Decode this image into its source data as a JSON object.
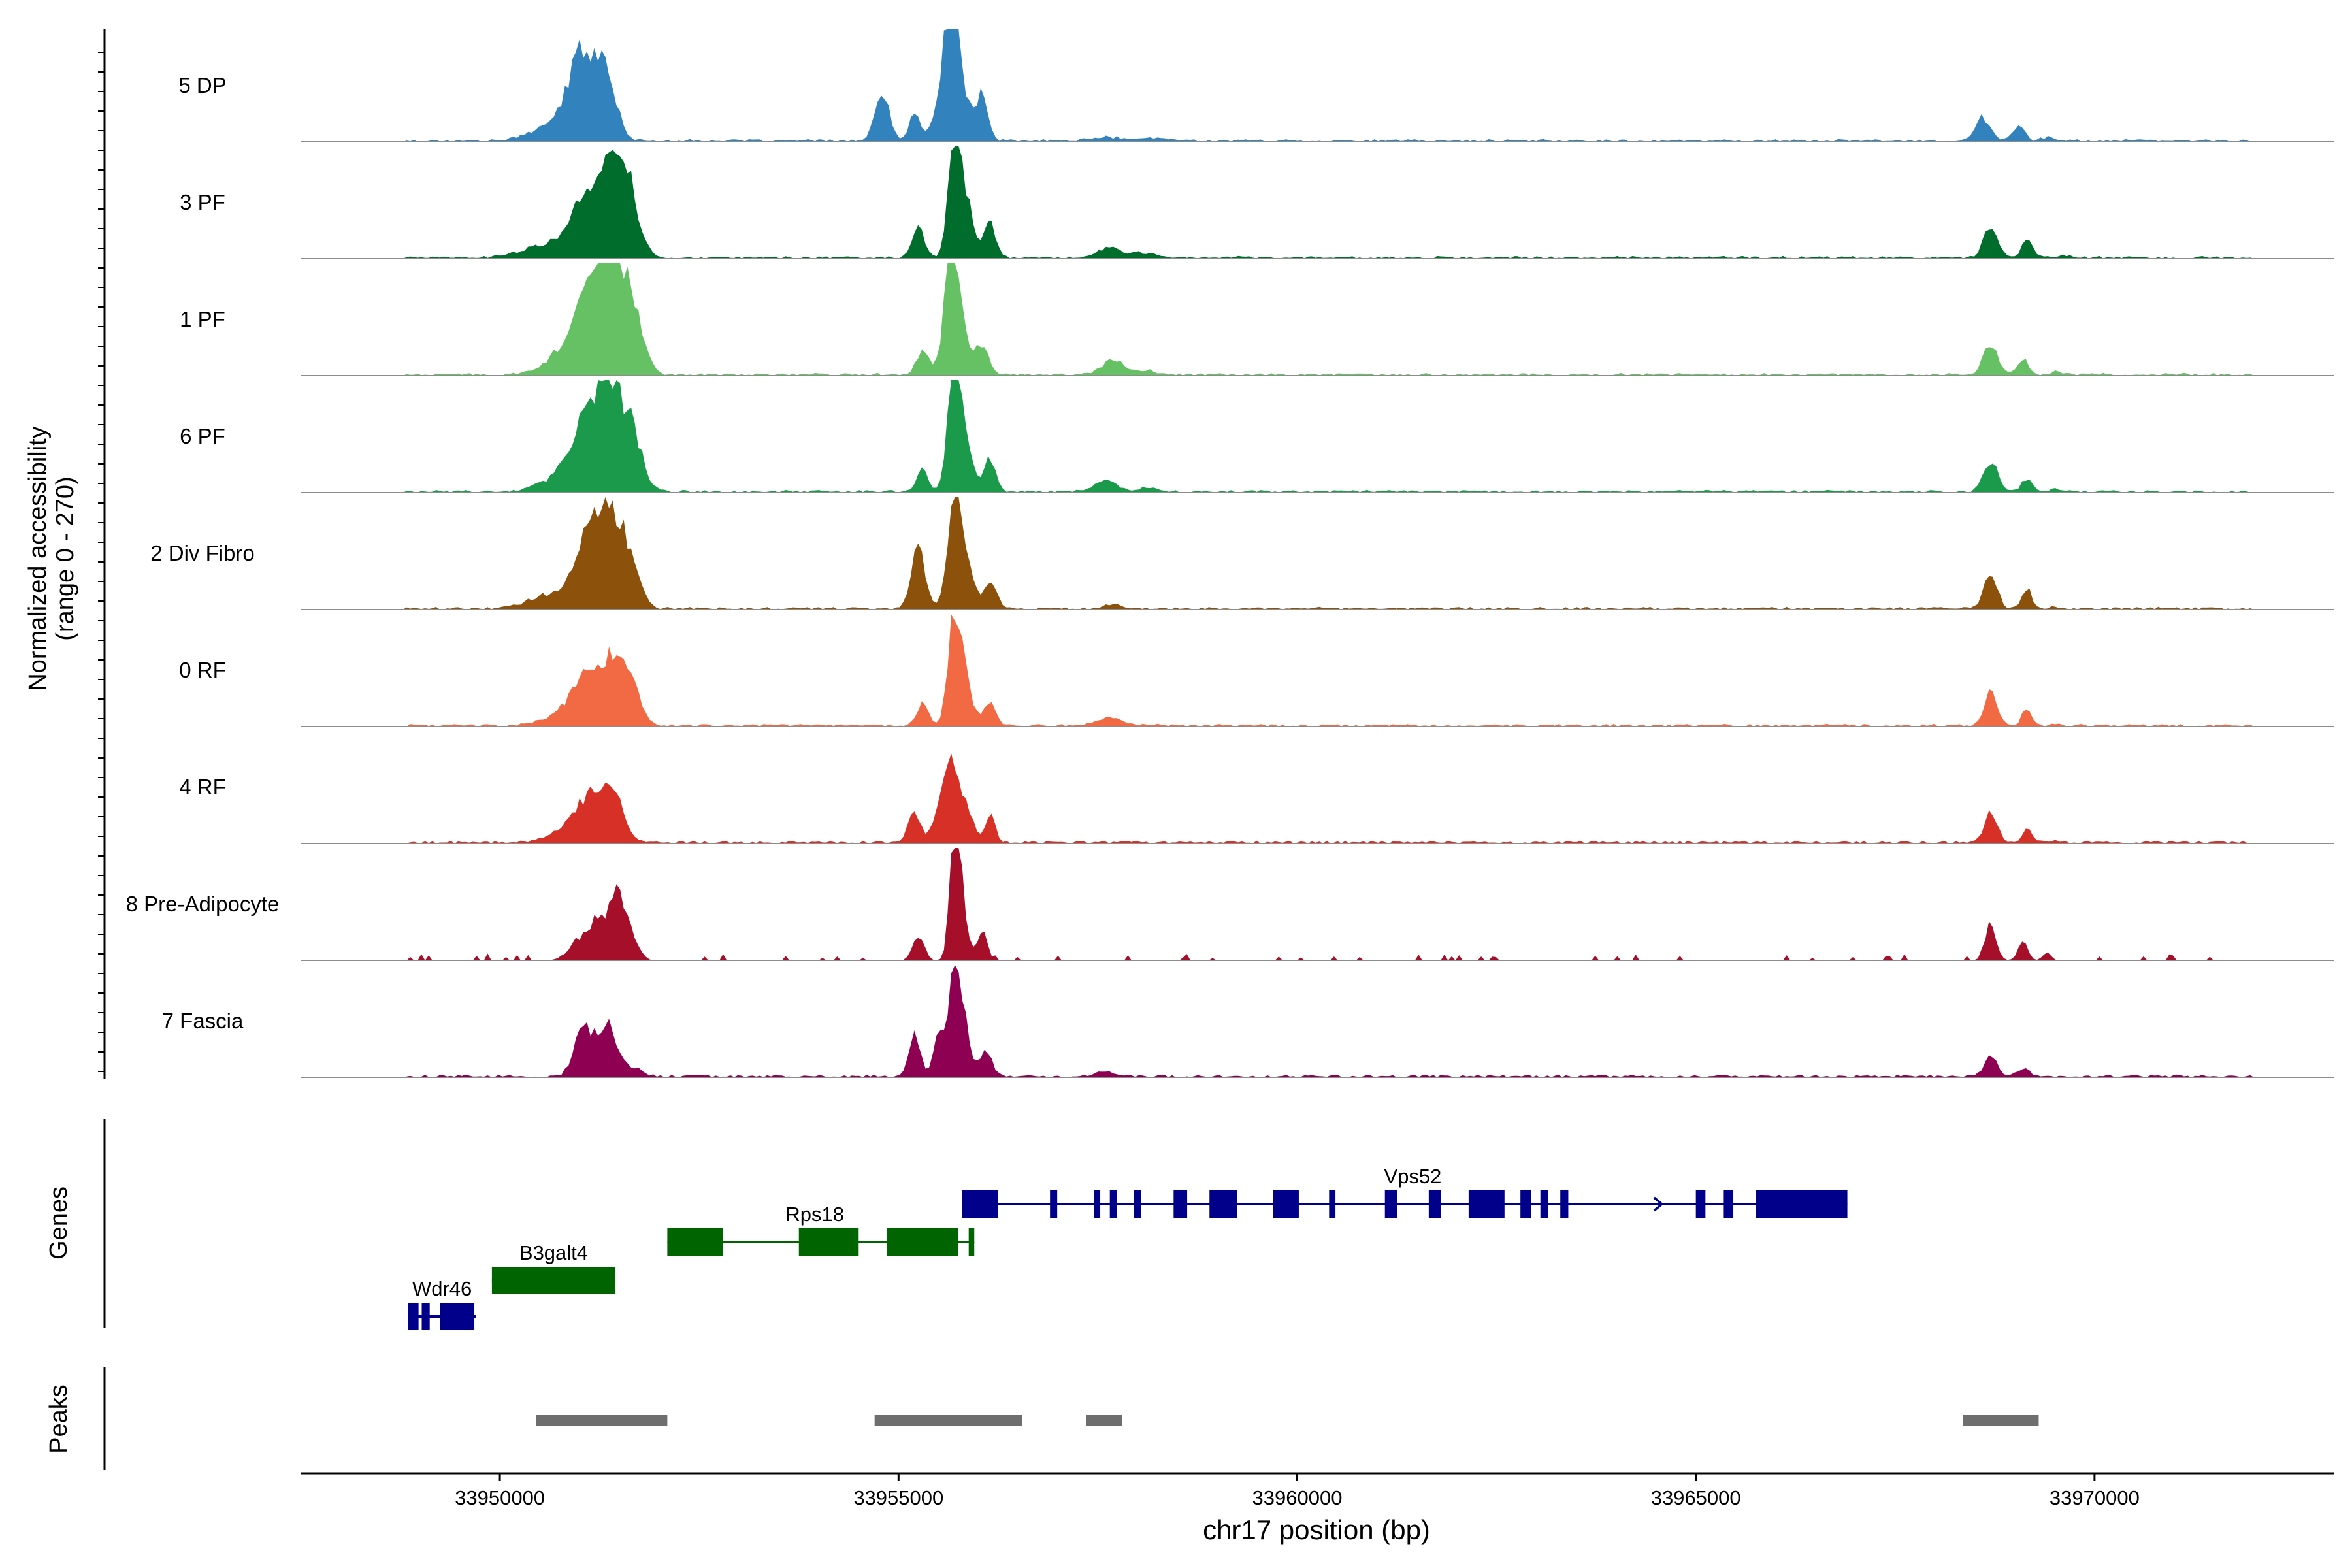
{
  "chart_data": {
    "type": "area",
    "title": "",
    "ylabel_line1": "Normalized accessibility",
    "ylabel_line2": "(range 0 - 270)",
    "xlabel": "chr17 position (bp)",
    "xlim": [
      33947500,
      33973000
    ],
    "ylim": [
      0,
      270
    ],
    "x_ticks": [
      33950000,
      33955000,
      33960000,
      33965000,
      33970000
    ],
    "x_tick_labels": [
      "33950000",
      "33955000",
      "33960000",
      "33965000",
      "33970000"
    ],
    "tracks": [
      {
        "name": "5 DP",
        "color": "#3182bd",
        "sparse": false,
        "peaks": [
          [
            33950680,
            45,
            250
          ],
          [
            33951050,
            200,
            170
          ],
          [
            33951350,
            140,
            120
          ],
          [
            33954800,
            110,
            90
          ],
          [
            33955200,
            70,
            60
          ],
          [
            33955650,
            245,
            80
          ],
          [
            33955700,
            140,
            180
          ],
          [
            33956050,
            90,
            70
          ],
          [
            33957600,
            8,
            200
          ],
          [
            33958200,
            6,
            200
          ],
          [
            33968600,
            55,
            90
          ],
          [
            33969050,
            40,
            70
          ],
          [
            33969400,
            8,
            80
          ]
        ]
      },
      {
        "name": "3 PF",
        "color": "#006d2c",
        "sparse": false,
        "peaks": [
          [
            33950600,
            30,
            300
          ],
          [
            33951100,
            150,
            190
          ],
          [
            33951450,
            170,
            150
          ],
          [
            33951600,
            110,
            150
          ],
          [
            33955250,
            75,
            75
          ],
          [
            33955700,
            240,
            70
          ],
          [
            33955800,
            160,
            110
          ],
          [
            33956150,
            80,
            70
          ],
          [
            33957650,
            22,
            160
          ],
          [
            33958100,
            10,
            150
          ],
          [
            33968700,
            70,
            90
          ],
          [
            33969150,
            40,
            70
          ],
          [
            33969600,
            8,
            60
          ]
        ]
      },
      {
        "name": "1 PF",
        "color": "#66c164",
        "sparse": false,
        "peaks": [
          [
            33950800,
            40,
            250
          ],
          [
            33951150,
            180,
            210
          ],
          [
            33951450,
            220,
            190
          ],
          [
            33951700,
            80,
            120
          ],
          [
            33955300,
            60,
            70
          ],
          [
            33955650,
            220,
            80
          ],
          [
            33955750,
            120,
            130
          ],
          [
            33956050,
            70,
            70
          ],
          [
            33957700,
            35,
            140
          ],
          [
            33958100,
            10,
            120
          ],
          [
            33968700,
            75,
            90
          ],
          [
            33969100,
            35,
            70
          ],
          [
            33969500,
            6,
            60
          ]
        ]
      },
      {
        "name": "6 PF",
        "color": "#1c9a4b",
        "sparse": false,
        "peaks": [
          [
            33950800,
            40,
            250
          ],
          [
            33951150,
            180,
            190
          ],
          [
            33951450,
            190,
            170
          ],
          [
            33951700,
            80,
            120
          ],
          [
            33955300,
            55,
            70
          ],
          [
            33955700,
            220,
            80
          ],
          [
            33955800,
            130,
            120
          ],
          [
            33956150,
            75,
            70
          ],
          [
            33957600,
            25,
            140
          ],
          [
            33958100,
            10,
            110
          ],
          [
            33968700,
            70,
            90
          ],
          [
            33969150,
            30,
            70
          ],
          [
            33969500,
            6,
            60
          ]
        ]
      },
      {
        "name": "2 Div Fibro",
        "color": "#8c510a",
        "sparse": false,
        "peaks": [
          [
            33950600,
            30,
            250
          ],
          [
            33951100,
            170,
            170
          ],
          [
            33951400,
            200,
            150
          ],
          [
            33951650,
            90,
            120
          ],
          [
            33955250,
            140,
            90
          ],
          [
            33955700,
            240,
            80
          ],
          [
            33955800,
            130,
            110
          ],
          [
            33956150,
            70,
            80
          ],
          [
            33957700,
            12,
            100
          ],
          [
            33968700,
            90,
            80
          ],
          [
            33969150,
            50,
            60
          ],
          [
            33969500,
            6,
            50
          ]
        ]
      },
      {
        "name": "0 RF",
        "color": "#f16a44",
        "sparse": false,
        "peaks": [
          [
            33950800,
            30,
            220
          ],
          [
            33951100,
            110,
            170
          ],
          [
            33951450,
            160,
            140
          ],
          [
            33951700,
            60,
            100
          ],
          [
            33955300,
            55,
            70
          ],
          [
            33955700,
            215,
            80
          ],
          [
            33955800,
            110,
            110
          ],
          [
            33956150,
            60,
            70
          ],
          [
            33957650,
            18,
            160
          ],
          [
            33968700,
            80,
            80
          ],
          [
            33969150,
            40,
            60
          ],
          [
            33969500,
            6,
            50
          ]
        ]
      },
      {
        "name": "4 RF",
        "color": "#d73027",
        "sparse": false,
        "peaks": [
          [
            33950800,
            25,
            220
          ],
          [
            33951100,
            95,
            160
          ],
          [
            33951400,
            120,
            140
          ],
          [
            33955200,
            65,
            80
          ],
          [
            33955500,
            90,
            70
          ],
          [
            33955650,
            160,
            70
          ],
          [
            33955800,
            110,
            110
          ],
          [
            33956150,
            70,
            60
          ],
          [
            33968700,
            70,
            80
          ],
          [
            33969150,
            35,
            60
          ],
          [
            33969500,
            5,
            50
          ]
        ]
      },
      {
        "name": "8 Pre-Adipocyte",
        "color": "#a50f29",
        "sparse": true,
        "peaks": [
          [
            33951000,
            50,
            130
          ],
          [
            33951200,
            70,
            90
          ],
          [
            33951450,
            160,
            100
          ],
          [
            33951650,
            60,
            90
          ],
          [
            33955250,
            60,
            70
          ],
          [
            33955700,
            250,
            60
          ],
          [
            33955780,
            150,
            80
          ],
          [
            33956050,
            70,
            60
          ],
          [
            33968700,
            75,
            70
          ],
          [
            33969100,
            45,
            60
          ],
          [
            33969400,
            20,
            50
          ]
        ]
      },
      {
        "name": "7 Fascia",
        "color": "#8e0152",
        "sparse": false,
        "peaks": [
          [
            33951050,
            125,
            110
          ],
          [
            33951350,
            135,
            110
          ],
          [
            33951650,
            20,
            120
          ],
          [
            33955200,
            100,
            70
          ],
          [
            33955500,
            120,
            60
          ],
          [
            33955700,
            210,
            70
          ],
          [
            33955800,
            130,
            90
          ],
          [
            33956100,
            60,
            70
          ],
          [
            33957600,
            10,
            120
          ],
          [
            33968700,
            50,
            80
          ],
          [
            33969100,
            20,
            70
          ]
        ]
      }
    ],
    "genes": [
      {
        "name": "Wdr46",
        "color": "#00008b",
        "strand": "+",
        "start": 33948850,
        "end": 33949700,
        "row": 2,
        "exons": [
          [
            33948850,
            33948980
          ],
          [
            33949020,
            33949120
          ],
          [
            33949250,
            33949680
          ]
        ]
      },
      {
        "name": "B3galt4",
        "color": "#006400",
        "strand": "-",
        "start": 33949900,
        "end": 33951450,
        "row": 1,
        "exons": [
          [
            33949900,
            33951450
          ]
        ]
      },
      {
        "name": "Rps18",
        "color": "#006400",
        "strand": "-",
        "start": 33952100,
        "end": 33955950,
        "row": 0,
        "exons": [
          [
            33952100,
            33952800
          ],
          [
            33953750,
            33954500
          ],
          [
            33954850,
            33955750
          ],
          [
            33955880,
            33955950
          ]
        ]
      },
      {
        "name": "Vps52",
        "color": "#00008b",
        "strand": "+",
        "start": 33955800,
        "end": 33966900,
        "row": -1,
        "exons": [
          [
            33955800,
            33956250
          ],
          [
            33956900,
            33956990
          ],
          [
            33957450,
            33957530
          ],
          [
            33957650,
            33957740
          ],
          [
            33957950,
            33958040
          ],
          [
            33958450,
            33958620
          ],
          [
            33958900,
            33959250
          ],
          [
            33959700,
            33960020
          ],
          [
            33960400,
            33960480
          ],
          [
            33961100,
            33961250
          ],
          [
            33961650,
            33961800
          ],
          [
            33962150,
            33962600
          ],
          [
            33962800,
            33962930
          ],
          [
            33963050,
            33963150
          ],
          [
            33963300,
            33963400
          ],
          [
            33965000,
            33965120
          ],
          [
            33965350,
            33965470
          ],
          [
            33965750,
            33966900
          ]
        ]
      }
    ],
    "peaks_track": [
      [
        33950450,
        33952100
      ],
      [
        33954700,
        33956550
      ],
      [
        33957350,
        33957800
      ],
      [
        33968350,
        33969300
      ]
    ],
    "panel_labels": {
      "genes": "Genes",
      "peaks": "Peaks"
    },
    "colors": {
      "axis": "#000000",
      "baseline": "#8c8c8c",
      "peak_bar": "#6e6e6e",
      "tick_text": "#4d4d4d"
    }
  }
}
